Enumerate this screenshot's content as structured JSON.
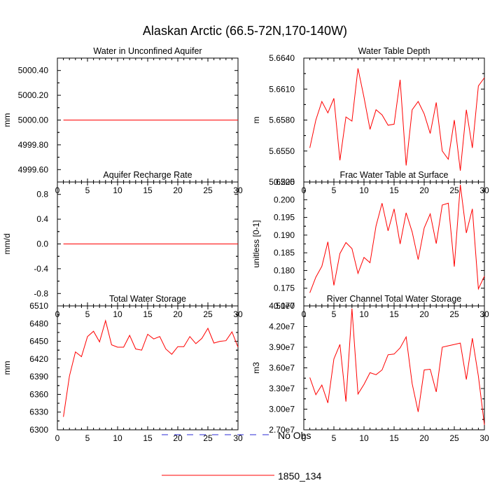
{
  "figure": {
    "title": "Alaskan Arctic (66.5-72N,170-140W)",
    "line_color": "#ff0000",
    "obs_color": "#2b2bd6"
  },
  "legend": {
    "entries": [
      {
        "label": "No Obs",
        "style": "dashed",
        "color": "#2b2bd6"
      },
      {
        "label": "1850_134",
        "style": "solid",
        "color": "#ff0000"
      }
    ]
  },
  "chart_data": [
    {
      "type": "line",
      "title": "Water in Unconfined Aquifer",
      "ylabel": "mm",
      "xlim": [
        0,
        30
      ],
      "xticks": [
        "0",
        "5",
        "10",
        "15",
        "20",
        "25",
        "30"
      ],
      "ylim": [
        4999.5,
        5000.5
      ],
      "yticks": [
        4999.6,
        4999.8,
        5000.0,
        5000.2,
        5000.4
      ],
      "ytick_labels": [
        "4999.60",
        "4999.80",
        "5000.00",
        "5000.20",
        "5000.40"
      ],
      "x": [
        1,
        2,
        3,
        4,
        5,
        6,
        7,
        8,
        9,
        10,
        11,
        12,
        13,
        14,
        15,
        16,
        17,
        18,
        19,
        20,
        21,
        22,
        23,
        24,
        25,
        26,
        27,
        28,
        29,
        30
      ],
      "series": [
        {
          "name": "1850_134",
          "values": [
            5000,
            5000,
            5000,
            5000,
            5000,
            5000,
            5000,
            5000,
            5000,
            5000,
            5000,
            5000,
            5000,
            5000,
            5000,
            5000,
            5000,
            5000,
            5000,
            5000,
            5000,
            5000,
            5000,
            5000,
            5000,
            5000,
            5000,
            5000,
            5000,
            5000
          ]
        }
      ]
    },
    {
      "type": "line",
      "title": "Water Table Depth",
      "ylabel": "m",
      "xlim": [
        0,
        30
      ],
      "xticks": [
        "0",
        "5",
        "10",
        "15",
        "20",
        "25",
        "30"
      ],
      "ylim": [
        5.652,
        5.664
      ],
      "yticks": [
        5.652,
        5.655,
        5.658,
        5.661,
        5.664
      ],
      "ytick_labels": [
        "5.6520",
        "5.6550",
        "5.6580",
        "5.6610",
        "5.6640"
      ],
      "x": [
        1,
        2,
        3,
        4,
        5,
        6,
        7,
        8,
        9,
        10,
        11,
        12,
        13,
        14,
        15,
        16,
        17,
        18,
        19,
        20,
        21,
        22,
        23,
        24,
        25,
        26,
        27,
        28,
        29,
        30
      ],
      "series": [
        {
          "name": "1850_134",
          "values": [
            5.6553,
            5.658,
            5.6598,
            5.6587,
            5.6601,
            5.6541,
            5.6583,
            5.6579,
            5.663,
            5.6602,
            5.6571,
            5.659,
            5.6585,
            5.6575,
            5.6576,
            5.6619,
            5.6536,
            5.659,
            5.6598,
            5.6586,
            5.6567,
            5.6597,
            5.655,
            5.6542,
            5.658,
            5.6531,
            5.659,
            5.6553,
            5.6613,
            5.6621
          ]
        }
      ]
    },
    {
      "type": "line",
      "title": "Aquifer Recharge Rate",
      "ylabel": "mm/d",
      "xlim": [
        0,
        30
      ],
      "xticks": [
        "0",
        "5",
        "10",
        "15",
        "20",
        "25",
        "30"
      ],
      "ylim": [
        -1.0,
        1.0
      ],
      "yticks": [
        -0.8,
        -0.4,
        0.0,
        0.4,
        0.8
      ],
      "ytick_labels": [
        "-0.8",
        "-0.4",
        "0.0",
        "0.4",
        "0.8"
      ],
      "x": [
        1,
        2,
        3,
        4,
        5,
        6,
        7,
        8,
        9,
        10,
        11,
        12,
        13,
        14,
        15,
        16,
        17,
        18,
        19,
        20,
        21,
        22,
        23,
        24,
        25,
        26,
        27,
        28,
        29,
        30
      ],
      "series": [
        {
          "name": "1850_134",
          "values": [
            0,
            0,
            0,
            0,
            0,
            0,
            0,
            0,
            0,
            0,
            0,
            0,
            0,
            0,
            0,
            0,
            0,
            0,
            0,
            0,
            0,
            0,
            0,
            0,
            0,
            0,
            0,
            0,
            0,
            0
          ]
        }
      ]
    },
    {
      "type": "line",
      "title": "Frac Water Table at Surface",
      "ylabel": "unitless [0-1]",
      "xlim": [
        0,
        30
      ],
      "xticks": [
        "0",
        "5",
        "10",
        "15",
        "20",
        "25",
        "30"
      ],
      "ylim": [
        0.17,
        0.205
      ],
      "yticks": [
        0.17,
        0.175,
        0.18,
        0.185,
        0.19,
        0.195,
        0.2,
        0.205
      ],
      "ytick_labels": [
        "0.170",
        "0.175",
        "0.180",
        "0.185",
        "0.190",
        "0.195",
        "0.200",
        "0.205"
      ],
      "x": [
        1,
        2,
        3,
        4,
        5,
        6,
        7,
        8,
        9,
        10,
        11,
        12,
        13,
        14,
        15,
        16,
        17,
        18,
        19,
        20,
        21,
        22,
        23,
        24,
        25,
        26,
        27,
        28,
        29,
        30
      ],
      "series": [
        {
          "name": "1850_134",
          "values": [
            0.1737,
            0.1781,
            0.1812,
            0.1881,
            0.1758,
            0.1848,
            0.1879,
            0.1862,
            0.1792,
            0.1837,
            0.1822,
            0.1926,
            0.199,
            0.1912,
            0.1974,
            0.1875,
            0.1963,
            0.1909,
            0.1831,
            0.192,
            0.196,
            0.1876,
            0.1985,
            0.199,
            0.1811,
            0.2042,
            0.1906,
            0.1974,
            0.1748,
            0.1784
          ]
        }
      ]
    },
    {
      "type": "line",
      "title": "Total Water Storage",
      "ylabel": "mm",
      "xlim": [
        0,
        30
      ],
      "xticks": [
        "0",
        "5",
        "10",
        "15",
        "20",
        "25",
        "30"
      ],
      "ylim": [
        6300,
        6510
      ],
      "yticks": [
        6300,
        6330,
        6360,
        6390,
        6420,
        6450,
        6480,
        6510
      ],
      "ytick_labels": [
        "6300",
        "6330",
        "6360",
        "6390",
        "6420",
        "6450",
        "6480",
        "6510"
      ],
      "x": [
        1,
        2,
        3,
        4,
        5,
        6,
        7,
        8,
        9,
        10,
        11,
        12,
        13,
        14,
        15,
        16,
        17,
        18,
        19,
        20,
        21,
        22,
        23,
        24,
        25,
        26,
        27,
        28,
        29,
        30
      ],
      "series": [
        {
          "name": "1850_134",
          "values": [
            6322,
            6391,
            6432,
            6424,
            6458,
            6467,
            6449,
            6485,
            6444,
            6440,
            6440,
            6460,
            6437,
            6435,
            6462,
            6454,
            6458,
            6437,
            6428,
            6441,
            6441,
            6458,
            6446,
            6455,
            6472,
            6447,
            6450,
            6451,
            6466,
            6440
          ]
        }
      ]
    },
    {
      "type": "line",
      "title": "River Channel Total Water Storage",
      "ylabel": "m3",
      "xlim": [
        0,
        30
      ],
      "xticks": [
        "0",
        "5",
        "10",
        "15",
        "20",
        "25",
        "30"
      ],
      "ylim": [
        27000000.0,
        45000000.0
      ],
      "yticks": [
        27000000.0,
        30000000.0,
        33000000.0,
        36000000.0,
        39000000.0,
        42000000.0,
        45000000.0
      ],
      "ytick_labels": [
        "2.70e7",
        "3.00e7",
        "3.30e7",
        "3.60e7",
        "3.90e7",
        "4.20e7",
        "4.50e7"
      ],
      "x": [
        1,
        2,
        3,
        4,
        5,
        6,
        7,
        8,
        9,
        10,
        11,
        12,
        13,
        14,
        15,
        16,
        17,
        18,
        19,
        20,
        21,
        22,
        23,
        24,
        25,
        26,
        27,
        28,
        29,
        30
      ],
      "series": [
        {
          "name": "1850_134",
          "values": [
            34600000,
            32100000,
            33500000,
            30900000,
            37300000,
            39400000,
            31100000,
            44600000,
            32200000,
            33600000,
            35300000,
            35000000,
            35700000,
            37900000,
            38000000,
            38900000,
            40500000,
            33700000,
            29600000,
            35700000,
            35800000,
            32500000,
            39000000,
            39200000,
            39400000,
            39600000,
            34300000,
            40300000,
            34800000,
            27700000
          ]
        }
      ]
    }
  ]
}
